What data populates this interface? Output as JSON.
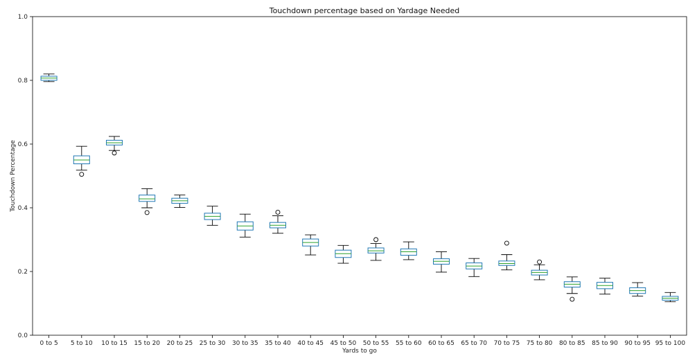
{
  "chart_data": {
    "type": "box",
    "title": "Touchdown percentage based on Yardage Needed",
    "xlabel": "Yards to go",
    "ylabel": "Touchdown Percentage",
    "ylim": [
      0.0,
      1.0
    ],
    "yticks": [
      "0.0",
      "0.2",
      "0.4",
      "0.6",
      "0.8",
      "1.0"
    ],
    "grid": false,
    "colors": {
      "box": "#1f77b4",
      "median": "#2ca02c",
      "whisker": "#000000",
      "flier": "#000000"
    },
    "categories": [
      "0 to 5",
      "5 to 10",
      "10 to 15",
      "15 to 20",
      "20 to 25",
      "25 to 30",
      "30 to 35",
      "35 to 40",
      "40 to 45",
      "45 to 50",
      "50 to 55",
      "55 to 60",
      "60 to 65",
      "65 to 70",
      "70 to 75",
      "75 to 80",
      "80 to 85",
      "85 to 90",
      "90 to 95",
      "95 to 100"
    ],
    "boxes": [
      {
        "whislo": 0.796,
        "q1": 0.8,
        "med": 0.807,
        "q3": 0.813,
        "whishi": 0.82,
        "fliers": []
      },
      {
        "whislo": 0.518,
        "q1": 0.538,
        "med": 0.55,
        "q3": 0.563,
        "whishi": 0.593,
        "fliers": [
          0.505
        ]
      },
      {
        "whislo": 0.58,
        "q1": 0.597,
        "med": 0.604,
        "q3": 0.612,
        "whishi": 0.624,
        "fliers": [
          0.572
        ]
      },
      {
        "whislo": 0.4,
        "q1": 0.42,
        "med": 0.428,
        "q3": 0.44,
        "whishi": 0.46,
        "fliers": [
          0.385
        ]
      },
      {
        "whislo": 0.401,
        "q1": 0.414,
        "med": 0.422,
        "q3": 0.43,
        "whishi": 0.44,
        "fliers": []
      },
      {
        "whislo": 0.345,
        "q1": 0.363,
        "med": 0.373,
        "q3": 0.383,
        "whishi": 0.405,
        "fliers": []
      },
      {
        "whislo": 0.308,
        "q1": 0.33,
        "med": 0.343,
        "q3": 0.356,
        "whishi": 0.38,
        "fliers": []
      },
      {
        "whislo": 0.32,
        "q1": 0.337,
        "med": 0.345,
        "q3": 0.354,
        "whishi": 0.375,
        "fliers": [
          0.386
        ]
      },
      {
        "whislo": 0.252,
        "q1": 0.28,
        "med": 0.291,
        "q3": 0.302,
        "whishi": 0.315,
        "fliers": []
      },
      {
        "whislo": 0.226,
        "q1": 0.244,
        "med": 0.256,
        "q3": 0.267,
        "whishi": 0.282,
        "fliers": []
      },
      {
        "whislo": 0.235,
        "q1": 0.258,
        "med": 0.265,
        "q3": 0.274,
        "whishi": 0.288,
        "fliers": [
          0.3
        ]
      },
      {
        "whislo": 0.237,
        "q1": 0.251,
        "med": 0.262,
        "q3": 0.271,
        "whishi": 0.293,
        "fliers": []
      },
      {
        "whislo": 0.198,
        "q1": 0.223,
        "med": 0.232,
        "q3": 0.24,
        "whishi": 0.262,
        "fliers": []
      },
      {
        "whislo": 0.184,
        "q1": 0.208,
        "med": 0.217,
        "q3": 0.227,
        "whishi": 0.241,
        "fliers": []
      },
      {
        "whislo": 0.205,
        "q1": 0.219,
        "med": 0.225,
        "q3": 0.233,
        "whishi": 0.253,
        "fliers": [
          0.289
        ]
      },
      {
        "whislo": 0.174,
        "q1": 0.189,
        "med": 0.197,
        "q3": 0.204,
        "whishi": 0.221,
        "fliers": [
          0.23
        ]
      },
      {
        "whislo": 0.131,
        "q1": 0.151,
        "med": 0.16,
        "q3": 0.168,
        "whishi": 0.183,
        "fliers": [
          0.113
        ]
      },
      {
        "whislo": 0.129,
        "q1": 0.146,
        "med": 0.156,
        "q3": 0.166,
        "whishi": 0.179,
        "fliers": []
      },
      {
        "whislo": 0.123,
        "q1": 0.131,
        "med": 0.14,
        "q3": 0.149,
        "whishi": 0.165,
        "fliers": []
      },
      {
        "whislo": 0.105,
        "q1": 0.11,
        "med": 0.116,
        "q3": 0.122,
        "whishi": 0.134,
        "fliers": []
      }
    ]
  }
}
